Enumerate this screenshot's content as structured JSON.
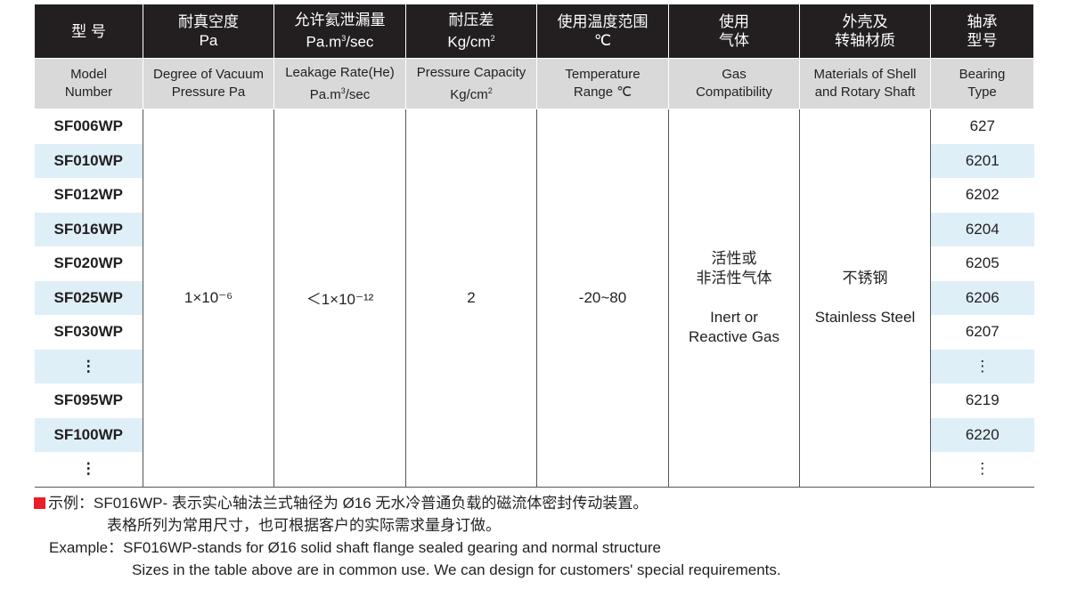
{
  "header_cn": [
    "型 号",
    "耐真空度",
    "允许氦泄漏量",
    "耐压差",
    "使用温度范围",
    "使用\n气体",
    "外壳及\n转轴材质",
    "轴承\n型号"
  ],
  "header_cn_unit": [
    "",
    "Pa",
    "Pa.m³/sec",
    "Kg/cm²",
    "℃",
    "",
    "",
    ""
  ],
  "header_en": [
    "Model\nNumber",
    "Degree of Vacuum\nPressure Pa",
    "Leakage Rate(He)\nPa.m³/sec",
    "Pressure Capacity\nKg/cm²",
    "Temperature\nRange ℃",
    "Gas\nCompatibility",
    "Materials of Shell\nand Rotary Shaft",
    "Bearing\nType"
  ],
  "rows": [
    {
      "model": "SF006WP",
      "bearing": "627"
    },
    {
      "model": "SF010WP",
      "bearing": "6201"
    },
    {
      "model": "SF012WP",
      "bearing": "6202"
    },
    {
      "model": "SF016WP",
      "bearing": "6204"
    },
    {
      "model": "SF020WP",
      "bearing": "6205"
    },
    {
      "model": "SF025WP",
      "bearing": "6206"
    },
    {
      "model": "SF030WP",
      "bearing": "6207"
    },
    {
      "model": "⋮",
      "bearing": "⋮"
    },
    {
      "model": "SF095WP",
      "bearing": "6219"
    },
    {
      "model": "SF100WP",
      "bearing": "6220"
    },
    {
      "model": "⋮",
      "bearing": "⋮"
    }
  ],
  "shared": {
    "vacuum": "1×10⁻⁶",
    "leakage": "＜1×10⁻¹²",
    "pressure": "2",
    "temperature": "-20~80",
    "gas_cn": "活性或\n非活性气体",
    "gas_en": "Inert or\nReactive Gas",
    "material_cn": "不锈钢",
    "material_en": "Stainless Steel"
  },
  "notes": {
    "cn1": "示例：SF016WP- 表示实心轴法兰式轴径为 Ø16 无水冷普通负载的磁流体密封传动装置。",
    "cn2": "表格所列为常用尺寸，也可根据客户的实际需求量身订做。",
    "en1": "Example：SF016WP-stands for Ø16 solid shaft flange sealed gearing and normal structure",
    "en2": "Sizes in the table above are in common use. We can design for customers' special requirements."
  },
  "colors": {
    "header": "#231f20",
    "subheader": "#d9d9da",
    "alt_row": "#deeff8",
    "marker": "#e91e26"
  }
}
